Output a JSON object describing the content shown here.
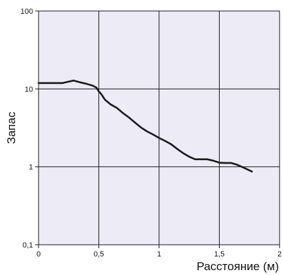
{
  "chart_data": {
    "type": "line",
    "title": "",
    "xlabel": "Расстояние (м)",
    "ylabel": "Запас",
    "xlim": [
      0,
      2
    ],
    "ylim": [
      0.1,
      100
    ],
    "y_scale": "log",
    "grid": true,
    "x_ticks": [
      {
        "value": 0,
        "label": "0"
      },
      {
        "value": 0.5,
        "label": "0,5"
      },
      {
        "value": 1,
        "label": "1"
      },
      {
        "value": 1.5,
        "label": "1,5"
      },
      {
        "value": 2,
        "label": "2"
      }
    ],
    "y_ticks": [
      {
        "value": 0.1,
        "label": "0,1"
      },
      {
        "value": 1,
        "label": "1"
      },
      {
        "value": 10,
        "label": "10"
      },
      {
        "value": 100,
        "label": "100"
      }
    ],
    "series": [
      {
        "color": "#1a1a1a",
        "x": [
          0.0,
          0.1,
          0.2,
          0.25,
          0.29,
          0.35,
          0.4,
          0.45,
          0.48,
          0.5,
          0.52,
          0.55,
          0.6,
          0.65,
          0.7,
          0.75,
          0.8,
          0.85,
          0.9,
          0.95,
          1.0,
          1.05,
          1.1,
          1.15,
          1.2,
          1.25,
          1.3,
          1.35,
          1.4,
          1.45,
          1.5,
          1.55,
          1.6,
          1.65,
          1.7,
          1.75,
          1.77
        ],
        "y": [
          11.9,
          11.9,
          11.9,
          12.4,
          12.8,
          12.1,
          11.6,
          11.0,
          10.4,
          9.3,
          8.6,
          7.3,
          6.3,
          5.7,
          4.9,
          4.3,
          3.7,
          3.2,
          2.85,
          2.6,
          2.35,
          2.15,
          1.95,
          1.7,
          1.5,
          1.35,
          1.25,
          1.25,
          1.25,
          1.2,
          1.13,
          1.12,
          1.12,
          1.06,
          0.98,
          0.9,
          0.87
        ]
      }
    ]
  }
}
